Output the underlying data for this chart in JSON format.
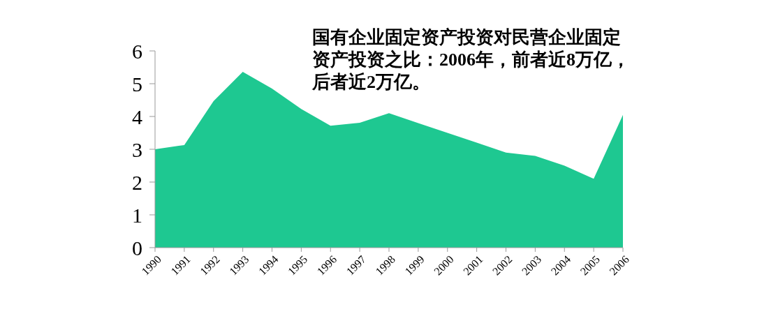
{
  "chart_data": {
    "type": "area",
    "categories": [
      "1990",
      "1991",
      "1992",
      "1993",
      "1994",
      "1995",
      "1996",
      "1997",
      "1998",
      "1999",
      "2000",
      "2001",
      "2002",
      "2003",
      "2004",
      "2005",
      "2006"
    ],
    "series": [
      {
        "color": "#1ec891",
        "values": [
          3.0,
          3.13,
          4.47,
          5.36,
          4.85,
          4.23,
          3.72,
          3.81,
          4.1,
          3.8,
          3.5,
          3.2,
          2.9,
          2.8,
          2.5,
          2.1,
          4.05
        ]
      }
    ],
    "ylim": [
      0,
      6
    ],
    "yticks": [
      0,
      1,
      2,
      3,
      4,
      5,
      6
    ],
    "grid": false,
    "annotations": [
      "国有企业固定资产投资对民营企业固定资产投资之比：2006年，前者近8万亿，后者近2万亿。"
    ]
  }
}
